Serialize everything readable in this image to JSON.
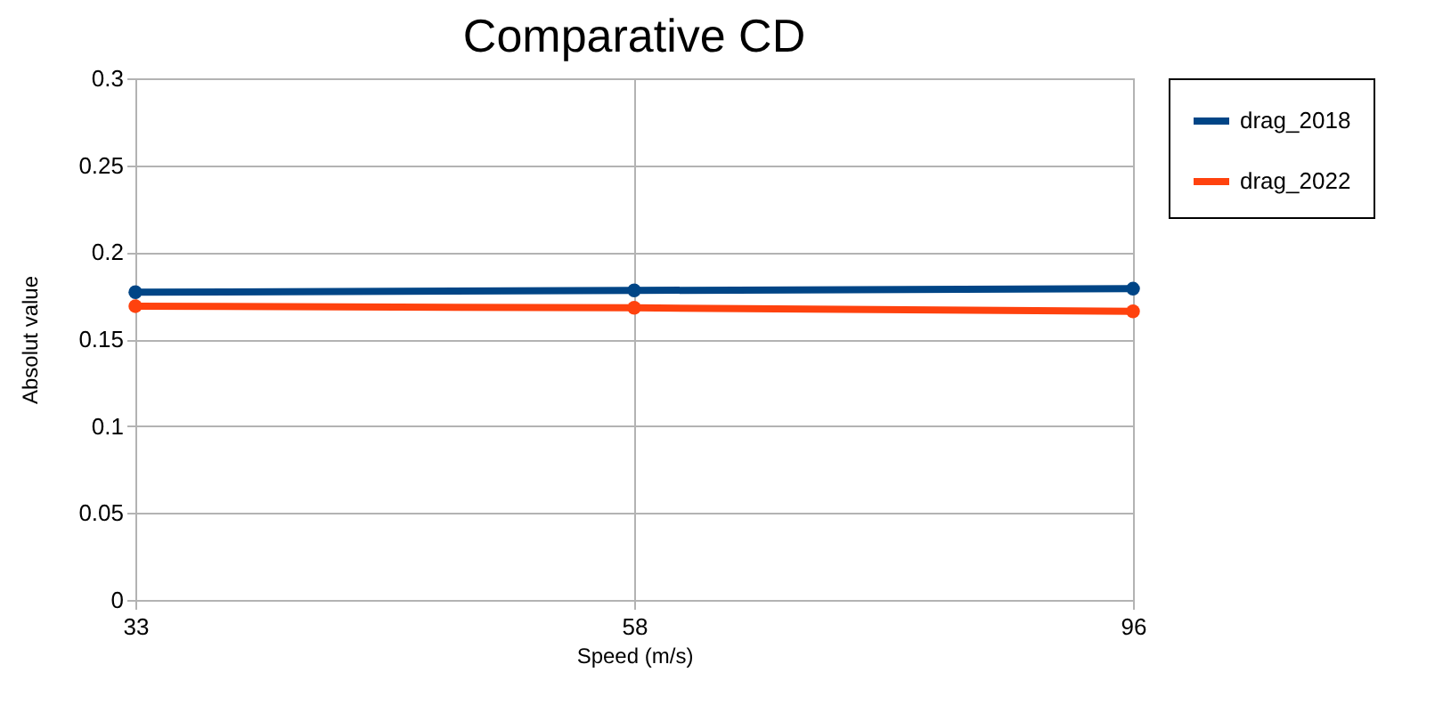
{
  "chart_data": {
    "type": "line",
    "title": "Comparative CD",
    "xlabel": "Speed (m/s)",
    "ylabel": "Absolut value",
    "categories": [
      "33",
      "58",
      "96"
    ],
    "series": [
      {
        "name": "drag_2018",
        "color": "#004586",
        "values": [
          0.177,
          0.178,
          0.179
        ]
      },
      {
        "name": "drag_2022",
        "color": "#ff420e",
        "values": [
          0.169,
          0.168,
          0.166
        ]
      }
    ],
    "ylim": [
      0,
      0.3
    ],
    "yticks": [
      0,
      0.05,
      0.1,
      0.15,
      0.2,
      0.25,
      0.3
    ],
    "grid": true,
    "legend": "right",
    "marker": "circle",
    "line_style": "solid"
  }
}
